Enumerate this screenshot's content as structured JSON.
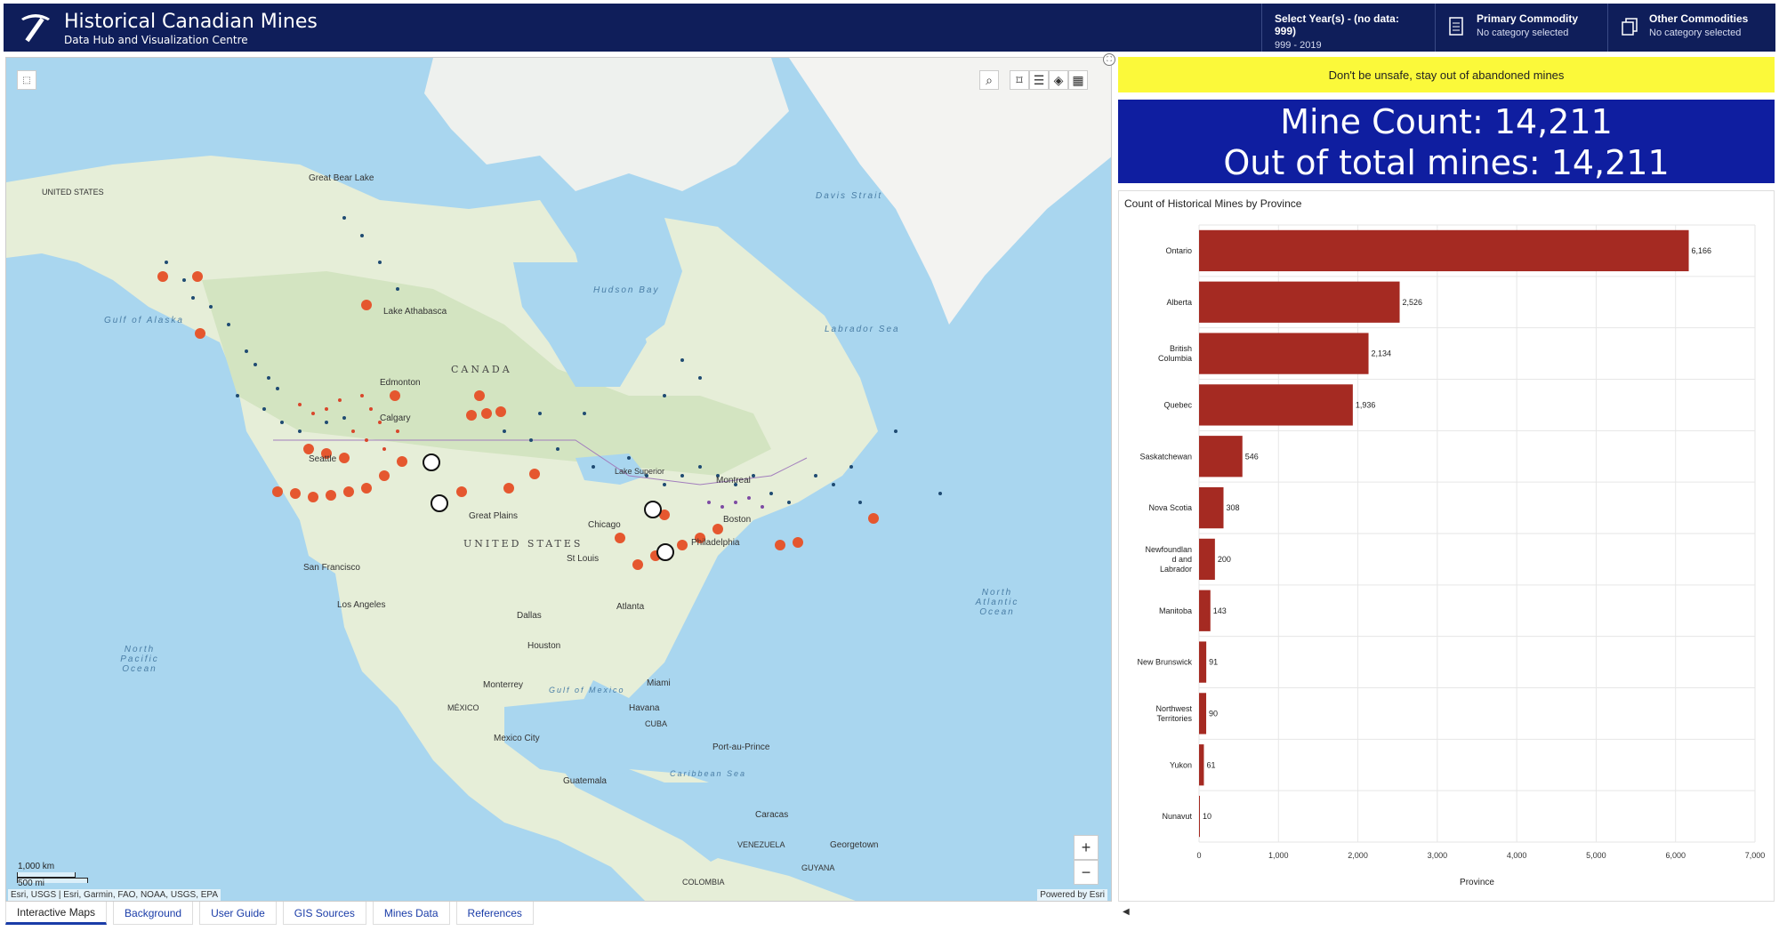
{
  "header": {
    "title": "Historical Canadian Mines",
    "subtitle": "Data Hub and Visualization Centre",
    "year_filter": {
      "title": "Select Year(s) - (no data: 999)",
      "value": "999 - 2019"
    },
    "primary_commodity": {
      "title": "Primary Commodity",
      "value": "No category selected",
      "icon": "document-icon"
    },
    "other_commodities": {
      "title": "Other Commodities",
      "value": "No category selected",
      "icon": "copy-icon"
    }
  },
  "map": {
    "attribution": "Esri, USGS | Esri, Garmin, FAO, NOAA, USGS, EPA",
    "powered_by": "Powered by Esri",
    "scale": {
      "km": "1,000 km",
      "mi": "500 mi"
    },
    "tools": [
      "search-icon",
      "bookmark-icon",
      "legend-icon",
      "layers-icon",
      "qr-icon"
    ],
    "zoom_in": "+",
    "zoom_out": "−",
    "labels": {
      "great_bear_lake": "Great Bear Lake",
      "lake_athabasca": "Lake Athabasca",
      "hudson_bay": "Hudson Bay",
      "davis_strait": "Davis Strait",
      "labrador_sea": "Labrador Sea",
      "gulf_of_alaska": "Gulf of Alaska",
      "united_states_nw": "UNITED STATES",
      "canada": "CANADA",
      "edmonton": "Edmonton",
      "calgary": "Calgary",
      "seattle": "Seattle",
      "great_plains": "Great Plains",
      "united_states": "UNITED STATES",
      "chicago": "Chicago",
      "boston": "Boston",
      "philadelphia": "Philadelphia",
      "st_louis": "St Louis",
      "san_francisco": "San Francisco",
      "los_angeles": "Los Angeles",
      "dallas": "Dallas",
      "atlanta": "Atlanta",
      "houston": "Houston",
      "north_pacific": "North Pacific Ocean",
      "north_atlantic": "North Atlantic Ocean",
      "monterrey": "Monterrey",
      "gulf_of_mexico": "Gulf of Mexico",
      "mexico": "MÉXICO",
      "miami": "Miami",
      "havana": "Havana",
      "cuba": "CUBA",
      "mexico_city": "Mexico City",
      "port_au_prince": "Port-au-Prince",
      "caribbean": "Caribbean Sea",
      "guatemala": "Guatemala",
      "caracas": "Caracas",
      "georgetown": "Georgetown",
      "venezuela": "VENEZUELA",
      "guyana": "GUYANA",
      "colombia": "COLOMBIA",
      "lake_superior": "Lake Superior",
      "montreal": "Montreal"
    }
  },
  "banner": "Don't be unsafe, stay out of abandoned mines",
  "count": {
    "line1": "Mine Count: 14,211",
    "line2": "Out of total mines: 14,211"
  },
  "chart_data": {
    "type": "bar",
    "orientation": "horizontal",
    "title": "Count of Historical Mines by Province",
    "xlabel": "Province",
    "categories": [
      "Ontario",
      "Alberta",
      "British Columbia",
      "Quebec",
      "Saskatchewan",
      "Nova Scotia",
      "Newfoundland and Labrador",
      "Manitoba",
      "New Brunswick",
      "Northwest Territories",
      "Yukon",
      "Nunavut"
    ],
    "category_labels": [
      [
        "Ontario"
      ],
      [
        "Alberta"
      ],
      [
        "British",
        "Columbia"
      ],
      [
        "Quebec"
      ],
      [
        "Saskatchewan"
      ],
      [
        "Nova Scotia"
      ],
      [
        "Newfoundlan",
        "d and",
        "Labrador"
      ],
      [
        "Manitoba"
      ],
      [
        "New Brunswick"
      ],
      [
        "Northwest",
        "Territories"
      ],
      [
        "Yukon"
      ],
      [
        "Nunavut"
      ]
    ],
    "values": [
      6166,
      2526,
      2134,
      1936,
      546,
      308,
      200,
      143,
      91,
      90,
      61,
      10
    ],
    "value_labels": [
      "6,166",
      "2,526",
      "2,134",
      "1,936",
      "546",
      "308",
      "200",
      "143",
      "91",
      "90",
      "61",
      "10"
    ],
    "xlim": [
      0,
      7000
    ],
    "xticks": [
      0,
      1000,
      2000,
      3000,
      4000,
      5000,
      6000,
      7000
    ],
    "xtick_labels": [
      "0",
      "1,000",
      "2,000",
      "3,000",
      "4,000",
      "5,000",
      "6,000",
      "7,000"
    ],
    "bar_color": "#a52a22",
    "grid": true
  },
  "tabs": [
    {
      "label": "Interactive Maps",
      "active": true
    },
    {
      "label": "Background",
      "active": false
    },
    {
      "label": "User Guide",
      "active": false
    },
    {
      "label": "GIS Sources",
      "active": false
    },
    {
      "label": "Mines Data",
      "active": false
    },
    {
      "label": "References",
      "active": false
    }
  ]
}
